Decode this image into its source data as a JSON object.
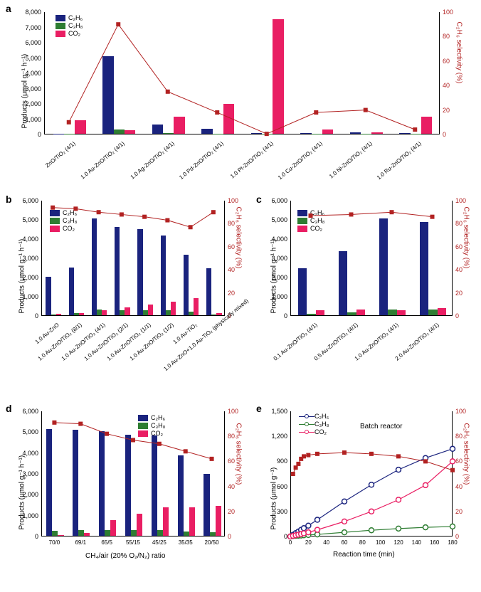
{
  "colors": {
    "c2h6": "#1a237e",
    "c3h8": "#2e7d32",
    "co2": "#e91e63",
    "selectivity": "#b22222",
    "bg": "#ffffff"
  },
  "legend": {
    "c2h6": "C₂H₆",
    "c3h8": "C₃H₈",
    "co2": "CO₂"
  },
  "panel_a": {
    "label": "a",
    "y_left_label": "Products (μmol g⁻¹ h⁻¹)",
    "y_right_label": "C₂H₆ selectivity (%)",
    "y_left_max": 8000,
    "y_left_step": 1000,
    "y_right_max": 100,
    "y_right_step": 20,
    "categories": [
      "ZnO/TiO₂ (4/1)",
      "1.0 Au-ZnO/TiO₂ (4/1)",
      "1.0 Ag-ZnO/TiO₂ (4/1)",
      "1.0 Pd-ZnO/TiO₂ (4/1)",
      "1.0 Pt-ZnO/TiO₂ (4/1)",
      "1.0 Cu-ZnO/TiO₂ (4/1)",
      "1.0 Ni-ZnO/TiO₂ (4/1)",
      "1.0 Ru-ZnO/TiO₂ (4/1)"
    ],
    "c2h6": [
      20,
      5050,
      600,
      320,
      40,
      40,
      80,
      40
    ],
    "c3h8": [
      5,
      280,
      30,
      20,
      10,
      10,
      10,
      10
    ],
    "co2": [
      900,
      250,
      1100,
      1950,
      7500,
      300,
      100,
      1100
    ],
    "selectivity": [
      10,
      90,
      35,
      18,
      0.5,
      18,
      20,
      4
    ]
  },
  "panel_b": {
    "label": "b",
    "y_left_label": "Products (μmol g⁻¹ h⁻¹)",
    "y_right_label": "C₂H₆ selectivity (%)",
    "y_left_max": 6000,
    "y_left_step": 1000,
    "y_right_max": 100,
    "y_right_step": 20,
    "categories": [
      "1.0 Au-ZnO",
      "1.0 Au-ZnO/TiO₂ (8/1)",
      "1.0 Au-ZnO/TiO₂ (4/1)",
      "1.0 Au-ZnO/TiO₂ (2/1)",
      "1.0 Au-ZnO/TiO₂ (1/1)",
      "1.0 Au-ZnO/TiO₂ (1/2)",
      "1.0 Au-TiO₂",
      "1.0 Au-ZnO+1.0 Au-TiO₂\n(physically mixed)"
    ],
    "c2h6": [
      2000,
      2500,
      5050,
      4600,
      4500,
      4150,
      3150,
      2450
    ],
    "c3h8": [
      50,
      100,
      280,
      250,
      250,
      250,
      200,
      50
    ],
    "co2": [
      60,
      120,
      250,
      420,
      550,
      700,
      880,
      100
    ],
    "selectivity": [
      94,
      93,
      90,
      88,
      86,
      83,
      77,
      90
    ]
  },
  "panel_c": {
    "label": "c",
    "y_left_label": "Products (μmol g⁻¹ h⁻¹)",
    "y_right_label": "C₂H₆ selectivity (%)",
    "y_left_max": 6000,
    "y_left_step": 1000,
    "y_right_max": 100,
    "y_right_step": 20,
    "categories": [
      "0.1 Au-ZnO/TiO₂ (4/1)",
      "0.5 Au-ZnO/TiO₂ (4/1)",
      "1.0 Au-ZnO/TiO₂ (4/1)",
      "2.0 Au-ZnO/TiO₂ (4/1)"
    ],
    "c2h6": [
      2450,
      3350,
      5050,
      4850
    ],
    "c3h8": [
      80,
      150,
      280,
      300
    ],
    "co2": [
      250,
      280,
      250,
      380
    ],
    "selectivity": [
      87,
      88,
      90,
      86
    ]
  },
  "panel_d": {
    "label": "d",
    "y_left_label": "Products (μmol g⁻¹ h⁻¹)",
    "y_right_label": "C₂H₆ selectivity (%)",
    "y_left_max": 6000,
    "y_left_step": 1000,
    "y_right_max": 100,
    "y_right_step": 20,
    "x_label": "CH₄/air (20% O₂/N₂) ratio",
    "categories": [
      "70/0",
      "69/1",
      "65/5",
      "55/15",
      "45/25",
      "35/35",
      "20/50"
    ],
    "c2h6": [
      5130,
      5070,
      5000,
      4850,
      4800,
      3850,
      2950
    ],
    "c3h8": [
      250,
      260,
      280,
      270,
      260,
      220,
      180
    ],
    "co2": [
      20,
      120,
      750,
      1050,
      1350,
      1380,
      1420
    ],
    "selectivity": [
      91,
      90,
      82,
      77,
      74,
      68,
      62
    ]
  },
  "panel_e": {
    "label": "e",
    "title": "Batch reactor",
    "y_left_label": "Products (μmol g⁻¹)",
    "y_right_label": "C₂H₆ selectivity (%)",
    "x_label": "Reaction time (min)",
    "y_left_max": 1500,
    "y_left_step": 300,
    "y_right_max": 100,
    "y_right_step": 20,
    "x_max": 180,
    "x_step": 20,
    "time": [
      0,
      3,
      6,
      9,
      12,
      15,
      20,
      30,
      60,
      90,
      120,
      150,
      180
    ],
    "c2h6": [
      0,
      20,
      40,
      60,
      80,
      100,
      130,
      200,
      420,
      620,
      800,
      940,
      1050
    ],
    "c3h8": [
      0,
      5,
      8,
      10,
      12,
      15,
      18,
      25,
      50,
      75,
      95,
      110,
      120
    ],
    "co2": [
      0,
      8,
      15,
      22,
      30,
      38,
      50,
      80,
      180,
      300,
      440,
      615,
      900
    ],
    "selectivity": [
      0,
      50,
      55,
      58,
      62,
      64,
      65,
      66,
      67,
      66,
      64,
      60,
      53
    ]
  }
}
